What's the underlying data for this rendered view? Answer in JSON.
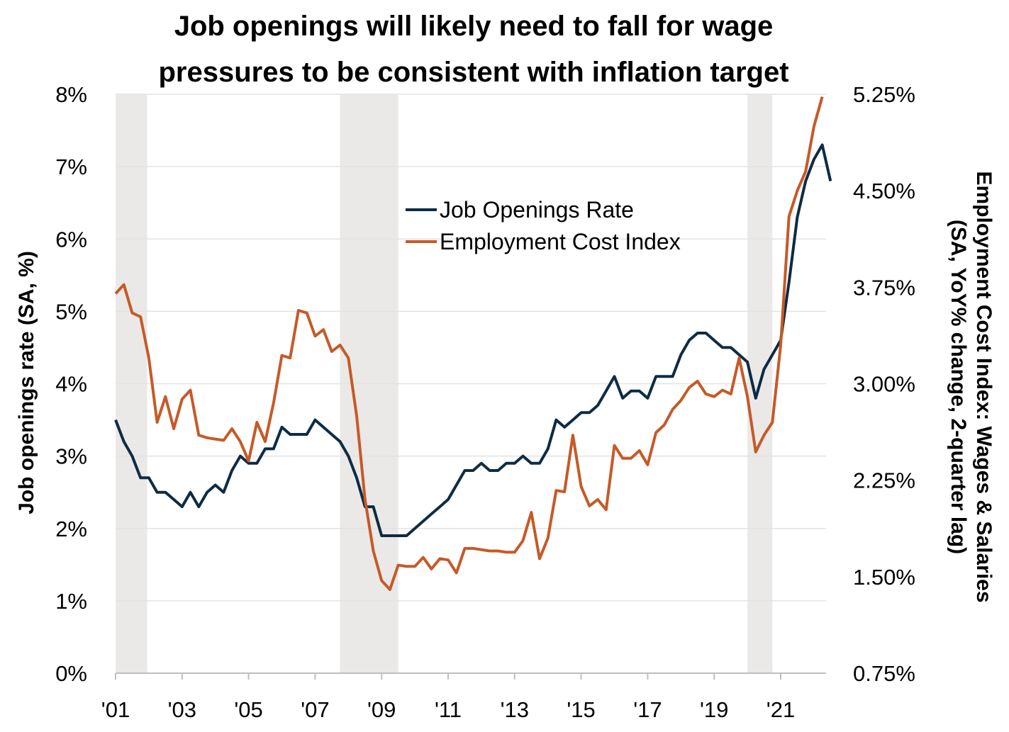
{
  "chart_data": {
    "type": "line",
    "title_lines": [
      "Job openings will likely need to fall for wage",
      "pressures to be consistent with inflation target"
    ],
    "ylabel": "Job openings rate (SA, %)",
    "y2label_lines": [
      "Employment Cost Index: Wages & Salaries",
      "(SA, YoY% change, 2-quarter lag)"
    ],
    "xlim": [
      2001,
      2022.5
    ],
    "ylim": [
      0,
      8
    ],
    "y2lim": [
      0.75,
      5.25
    ],
    "x_ticks": [
      {
        "value": 2001,
        "label": "'01"
      },
      {
        "value": 2003,
        "label": "'03"
      },
      {
        "value": 2005,
        "label": "'05"
      },
      {
        "value": 2007,
        "label": "'07"
      },
      {
        "value": 2009,
        "label": "'09"
      },
      {
        "value": 2011,
        "label": "'11"
      },
      {
        "value": 2013,
        "label": "'13"
      },
      {
        "value": 2015,
        "label": "'15"
      },
      {
        "value": 2017,
        "label": "'17"
      },
      {
        "value": 2019,
        "label": "'19"
      },
      {
        "value": 2021,
        "label": "'21"
      }
    ],
    "y_ticks": [
      {
        "value": 0,
        "label": "0%"
      },
      {
        "value": 1,
        "label": "1%"
      },
      {
        "value": 2,
        "label": "2%"
      },
      {
        "value": 3,
        "label": "3%"
      },
      {
        "value": 4,
        "label": "4%"
      },
      {
        "value": 5,
        "label": "5%"
      },
      {
        "value": 6,
        "label": "6%"
      },
      {
        "value": 7,
        "label": "7%"
      },
      {
        "value": 8,
        "label": "8%"
      }
    ],
    "y2_ticks": [
      {
        "value": 0.75,
        "label": "0.75%"
      },
      {
        "value": 1.5,
        "label": "1.50%"
      },
      {
        "value": 2.25,
        "label": "2.25%"
      },
      {
        "value": 3.0,
        "label": "3.00%"
      },
      {
        "value": 3.75,
        "label": "3.75%"
      },
      {
        "value": 4.5,
        "label": "4.50%"
      },
      {
        "value": 5.25,
        "label": "5.25%"
      }
    ],
    "recessions": [
      [
        2001.0,
        2001.95
      ],
      [
        2007.75,
        2009.5
      ],
      [
        2020.0,
        2020.75
      ]
    ],
    "legend_position": "upper-center",
    "grid": "horizontal",
    "series": [
      {
        "name": "Job Openings Rate",
        "axis": "left",
        "color": "#0d2c44",
        "points": [
          [
            2001.0,
            3.5
          ],
          [
            2001.25,
            3.2
          ],
          [
            2001.5,
            3.0
          ],
          [
            2001.75,
            2.7
          ],
          [
            2002.0,
            2.7
          ],
          [
            2002.25,
            2.5
          ],
          [
            2002.5,
            2.5
          ],
          [
            2002.75,
            2.4
          ],
          [
            2003.0,
            2.3
          ],
          [
            2003.25,
            2.5
          ],
          [
            2003.5,
            2.3
          ],
          [
            2003.75,
            2.5
          ],
          [
            2004.0,
            2.6
          ],
          [
            2004.25,
            2.5
          ],
          [
            2004.5,
            2.8
          ],
          [
            2004.75,
            3.0
          ],
          [
            2005.0,
            2.9
          ],
          [
            2005.25,
            2.9
          ],
          [
            2005.5,
            3.1
          ],
          [
            2005.75,
            3.1
          ],
          [
            2006.0,
            3.4
          ],
          [
            2006.25,
            3.3
          ],
          [
            2006.5,
            3.3
          ],
          [
            2006.75,
            3.3
          ],
          [
            2007.0,
            3.5
          ],
          [
            2007.25,
            3.4
          ],
          [
            2007.5,
            3.3
          ],
          [
            2007.75,
            3.2
          ],
          [
            2008.0,
            3.0
          ],
          [
            2008.25,
            2.7
          ],
          [
            2008.5,
            2.3
          ],
          [
            2008.75,
            2.3
          ],
          [
            2009.0,
            1.9
          ],
          [
            2009.25,
            1.9
          ],
          [
            2009.5,
            1.9
          ],
          [
            2009.75,
            1.9
          ],
          [
            2010.0,
            2.0
          ],
          [
            2010.25,
            2.1
          ],
          [
            2010.5,
            2.2
          ],
          [
            2010.75,
            2.3
          ],
          [
            2011.0,
            2.4
          ],
          [
            2011.25,
            2.6
          ],
          [
            2011.5,
            2.8
          ],
          [
            2011.75,
            2.8
          ],
          [
            2012.0,
            2.9
          ],
          [
            2012.25,
            2.8
          ],
          [
            2012.5,
            2.8
          ],
          [
            2012.75,
            2.9
          ],
          [
            2013.0,
            2.9
          ],
          [
            2013.25,
            3.0
          ],
          [
            2013.5,
            2.9
          ],
          [
            2013.75,
            2.9
          ],
          [
            2014.0,
            3.1
          ],
          [
            2014.25,
            3.5
          ],
          [
            2014.5,
            3.4
          ],
          [
            2014.75,
            3.5
          ],
          [
            2015.0,
            3.6
          ],
          [
            2015.25,
            3.6
          ],
          [
            2015.5,
            3.7
          ],
          [
            2015.75,
            3.9
          ],
          [
            2016.0,
            4.1
          ],
          [
            2016.25,
            3.8
          ],
          [
            2016.5,
            3.9
          ],
          [
            2016.75,
            3.9
          ],
          [
            2017.0,
            3.8
          ],
          [
            2017.25,
            4.1
          ],
          [
            2017.5,
            4.1
          ],
          [
            2017.75,
            4.1
          ],
          [
            2018.0,
            4.4
          ],
          [
            2018.25,
            4.6
          ],
          [
            2018.5,
            4.7
          ],
          [
            2018.75,
            4.7
          ],
          [
            2019.0,
            4.6
          ],
          [
            2019.25,
            4.5
          ],
          [
            2019.5,
            4.5
          ],
          [
            2019.75,
            4.4
          ],
          [
            2020.0,
            4.3
          ],
          [
            2020.25,
            3.8
          ],
          [
            2020.5,
            4.2
          ],
          [
            2020.75,
            4.4
          ],
          [
            2021.0,
            4.6
          ],
          [
            2021.25,
            5.4
          ],
          [
            2021.5,
            6.3
          ],
          [
            2021.75,
            6.8
          ],
          [
            2022.0,
            7.1
          ],
          [
            2022.25,
            7.3
          ],
          [
            2022.5,
            6.8
          ]
        ]
      },
      {
        "name": "Employment Cost Index",
        "axis": "right",
        "color": "#c55a28",
        "points": [
          [
            2001.0,
            3.7
          ],
          [
            2001.25,
            3.77
          ],
          [
            2001.5,
            3.55
          ],
          [
            2001.75,
            3.52
          ],
          [
            2002.0,
            3.2
          ],
          [
            2002.25,
            2.7
          ],
          [
            2002.5,
            2.9
          ],
          [
            2002.75,
            2.65
          ],
          [
            2003.0,
            2.88
          ],
          [
            2003.25,
            2.95
          ],
          [
            2003.5,
            2.6
          ],
          [
            2003.75,
            2.58
          ],
          [
            2004.0,
            2.57
          ],
          [
            2004.25,
            2.56
          ],
          [
            2004.5,
            2.65
          ],
          [
            2004.75,
            2.55
          ],
          [
            2005.0,
            2.4
          ],
          [
            2005.25,
            2.7
          ],
          [
            2005.5,
            2.55
          ],
          [
            2005.75,
            2.85
          ],
          [
            2006.0,
            3.22
          ],
          [
            2006.25,
            3.2
          ],
          [
            2006.5,
            3.57
          ],
          [
            2006.75,
            3.55
          ],
          [
            2007.0,
            3.37
          ],
          [
            2007.25,
            3.42
          ],
          [
            2007.5,
            3.25
          ],
          [
            2007.75,
            3.3
          ],
          [
            2008.0,
            3.2
          ],
          [
            2008.25,
            2.75
          ],
          [
            2008.5,
            2.1
          ],
          [
            2008.75,
            1.7
          ],
          [
            2009.0,
            1.47
          ],
          [
            2009.25,
            1.4
          ],
          [
            2009.5,
            1.59
          ],
          [
            2009.75,
            1.58
          ],
          [
            2010.0,
            1.58
          ],
          [
            2010.25,
            1.65
          ],
          [
            2010.5,
            1.56
          ],
          [
            2010.75,
            1.64
          ],
          [
            2011.0,
            1.63
          ],
          [
            2011.25,
            1.53
          ],
          [
            2011.5,
            1.72
          ],
          [
            2011.75,
            1.72
          ],
          [
            2012.0,
            1.71
          ],
          [
            2012.25,
            1.7
          ],
          [
            2012.5,
            1.7
          ],
          [
            2012.75,
            1.69
          ],
          [
            2013.0,
            1.69
          ],
          [
            2013.25,
            1.78
          ],
          [
            2013.5,
            2.0
          ],
          [
            2013.75,
            1.64
          ],
          [
            2014.0,
            1.8
          ],
          [
            2014.25,
            2.17
          ],
          [
            2014.5,
            2.16
          ],
          [
            2014.75,
            2.6
          ],
          [
            2015.0,
            2.2
          ],
          [
            2015.25,
            2.05
          ],
          [
            2015.5,
            2.1
          ],
          [
            2015.75,
            2.02
          ],
          [
            2016.0,
            2.52
          ],
          [
            2016.25,
            2.42
          ],
          [
            2016.5,
            2.42
          ],
          [
            2016.75,
            2.48
          ],
          [
            2017.0,
            2.37
          ],
          [
            2017.25,
            2.62
          ],
          [
            2017.5,
            2.68
          ],
          [
            2017.75,
            2.8
          ],
          [
            2018.0,
            2.87
          ],
          [
            2018.25,
            2.97
          ],
          [
            2018.5,
            3.02
          ],
          [
            2018.75,
            2.92
          ],
          [
            2019.0,
            2.9
          ],
          [
            2019.25,
            2.95
          ],
          [
            2019.5,
            2.92
          ],
          [
            2019.75,
            3.2
          ],
          [
            2020.0,
            2.9
          ],
          [
            2020.25,
            2.47
          ],
          [
            2020.5,
            2.6
          ],
          [
            2020.75,
            2.7
          ],
          [
            2021.0,
            3.3
          ],
          [
            2021.25,
            4.3
          ],
          [
            2021.5,
            4.5
          ],
          [
            2021.75,
            4.65
          ],
          [
            2022.0,
            5.0
          ],
          [
            2022.25,
            5.23
          ]
        ]
      }
    ]
  }
}
